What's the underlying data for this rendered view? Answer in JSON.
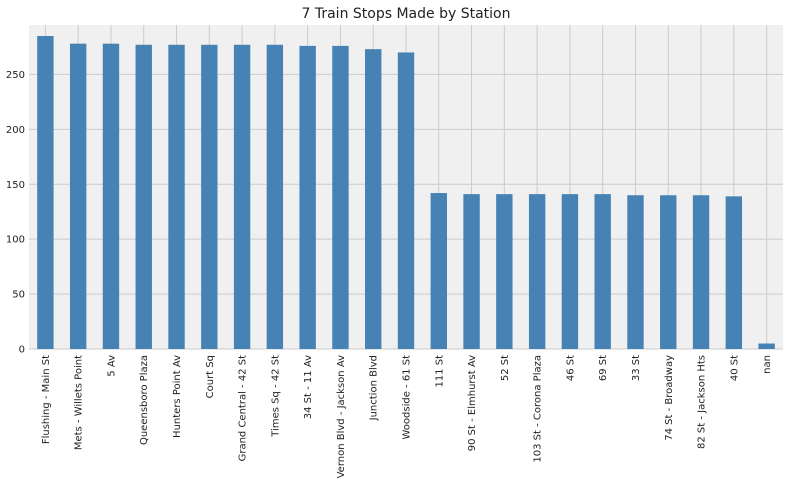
{
  "chart_data": {
    "type": "bar",
    "title": "7 Train Stops Made by Station",
    "xlabel": "",
    "ylabel": "",
    "categories": [
      "Flushing - Main St",
      "Mets - Willets Point",
      "5 Av",
      "Queensboro Plaza",
      "Hunters Point Av",
      "Court Sq",
      "Grand Central - 42 St",
      "Times Sq - 42 St",
      "34 St - 11 Av",
      "Vernon Blvd - Jackson Av",
      "Junction Blvd",
      "Woodside - 61 St",
      "111 St",
      "90 St - Elmhurst Av",
      "52 St",
      "103 St - Corona Plaza",
      "46 St",
      "69 St",
      "33 St",
      "74 St - Broadway",
      "82 St - Jackson Hts",
      "40 St",
      "nan"
    ],
    "values": [
      285,
      278,
      278,
      277,
      277,
      277,
      277,
      277,
      276,
      276,
      273,
      270,
      142,
      141,
      141,
      141,
      141,
      141,
      140,
      140,
      140,
      139,
      5
    ],
    "ylim": [
      0,
      295
    ],
    "yticks": [
      0,
      50,
      100,
      150,
      200,
      250
    ],
    "grid": true,
    "legend": "none",
    "colors": {
      "bar": "#4682b4",
      "background": "#f0f0f0",
      "grid": "#cbcbcb"
    }
  }
}
